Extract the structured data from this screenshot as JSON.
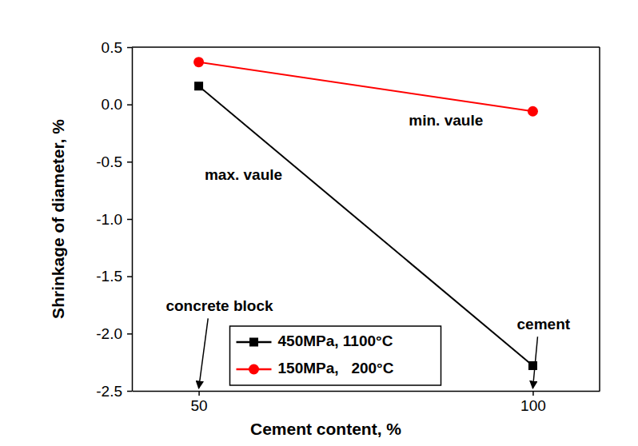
{
  "chart_data": {
    "type": "line",
    "x_label": "Cement content, %",
    "y_label": "Shrinkage of diameter, %",
    "x": [
      50,
      100
    ],
    "series": [
      {
        "name": "450MPa, 1100°C",
        "color": "#000000",
        "marker": "square",
        "line_style": "solid",
        "values": [
          0.16,
          -2.28
        ]
      },
      {
        "name": "150MPa,   200°C",
        "color": "#ff0000",
        "marker": "circle",
        "line_style": "solid",
        "values": [
          0.37,
          -0.06
        ]
      }
    ],
    "xlim": [
      40,
      110
    ],
    "xticks": [
      50,
      100
    ],
    "ylim": [
      -2.5,
      0.5
    ],
    "yticks": [
      0.5,
      {
        "value": 0,
        "label": "0.0"
      },
      -0.5,
      {
        "value": -1,
        "label": "-1.0"
      },
      -1.5,
      {
        "value": -2,
        "label": "-2.0"
      },
      -2.5
    ],
    "legend": "lower center",
    "grid": false,
    "annotations": [
      {
        "text": "max. vaule",
        "x": 56.7,
        "y": -0.62
      },
      {
        "text": "min. vaule",
        "x": 87.0,
        "y": -0.15
      },
      {
        "text": "concrete block",
        "x": 53.1,
        "y": -1.77,
        "arrow_to": [
          50,
          -2.5
        ]
      },
      {
        "text": "cement",
        "x": 101.6,
        "y": -1.93,
        "arrow_to": [
          100,
          -2.5
        ]
      }
    ]
  }
}
